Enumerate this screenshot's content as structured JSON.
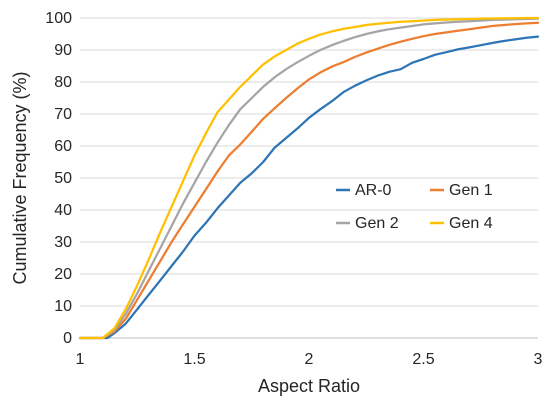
{
  "chart_data": {
    "type": "line",
    "title": "",
    "xlabel": "Aspect Ratio",
    "ylabel": "Cumulative Frequency (%)",
    "xlim": [
      1,
      3
    ],
    "ylim": [
      0,
      100
    ],
    "x_ticks": [
      1,
      1.5,
      2,
      2.5,
      3
    ],
    "x_tick_labels": [
      "1",
      "1.5",
      "2",
      "2.5",
      "3"
    ],
    "y_ticks": [
      0,
      10,
      20,
      30,
      40,
      50,
      60,
      70,
      80,
      90,
      100
    ],
    "y_tick_labels": [
      "0",
      "10",
      "20",
      "30",
      "40",
      "50",
      "60",
      "70",
      "80",
      "90",
      "100"
    ],
    "grid": "horizontal",
    "legend_placement": "center-right",
    "series": [
      {
        "name": "AR-0",
        "color": "#2e75b6",
        "x": [
          1.0,
          1.12,
          1.15,
          1.2,
          1.25,
          1.3,
          1.35,
          1.4,
          1.45,
          1.5,
          1.55,
          1.6,
          1.65,
          1.7,
          1.75,
          1.8,
          1.85,
          1.9,
          1.95,
          2.0,
          2.05,
          2.1,
          2.15,
          2.2,
          2.25,
          2.3,
          2.35,
          2.4,
          2.45,
          2.5,
          2.55,
          2.6,
          2.65,
          2.7,
          2.75,
          2.8,
          2.85,
          2.9,
          2.95,
          3.0
        ],
        "y": [
          0,
          0,
          1.5,
          4.5,
          9,
          13.5,
          18,
          22.5,
          27,
          32,
          36,
          40.5,
          44.5,
          48.5,
          51.5,
          55,
          59.5,
          62.5,
          65.5,
          68.8,
          71.5,
          74,
          76.8,
          78.8,
          80.5,
          82,
          83.2,
          84,
          86,
          87.2,
          88.5,
          89.3,
          90.2,
          90.8,
          91.5,
          92.2,
          92.8,
          93.3,
          93.8,
          94.2
        ]
      },
      {
        "name": "Gen 1",
        "color": "#ed7d31",
        "x": [
          1.0,
          1.1,
          1.15,
          1.2,
          1.25,
          1.3,
          1.35,
          1.4,
          1.45,
          1.5,
          1.55,
          1.6,
          1.65,
          1.7,
          1.75,
          1.8,
          1.85,
          1.9,
          1.95,
          2.0,
          2.05,
          2.1,
          2.15,
          2.2,
          2.25,
          2.3,
          2.35,
          2.4,
          2.45,
          2.5,
          2.55,
          2.6,
          2.65,
          2.7,
          2.75,
          2.8,
          2.85,
          2.9,
          2.95,
          3.0
        ],
        "y": [
          0,
          0,
          2,
          6,
          12,
          18,
          24,
          30,
          35.5,
          41,
          46.5,
          52,
          57,
          60.5,
          64.5,
          68.5,
          71.8,
          75,
          78,
          80.8,
          83,
          84.8,
          86.2,
          87.8,
          89.2,
          90.4,
          91.6,
          92.6,
          93.5,
          94.3,
          95,
          95.5,
          96,
          96.5,
          97,
          97.5,
          97.8,
          98.1,
          98.3,
          98.5
        ]
      },
      {
        "name": "Gen 2",
        "color": "#a5a5a5",
        "x": [
          1.0,
          1.1,
          1.15,
          1.2,
          1.25,
          1.3,
          1.35,
          1.4,
          1.45,
          1.5,
          1.55,
          1.6,
          1.65,
          1.7,
          1.75,
          1.8,
          1.85,
          1.9,
          1.95,
          2.0,
          2.05,
          2.1,
          2.15,
          2.2,
          2.25,
          2.3,
          2.35,
          2.4,
          2.45,
          2.5,
          2.55,
          2.6,
          2.65,
          2.7,
          2.75,
          2.8,
          2.85,
          2.9,
          2.95,
          3.0
        ],
        "y": [
          0,
          0,
          2.5,
          7.5,
          14,
          21,
          28,
          35,
          42,
          48.5,
          55,
          61,
          66.5,
          71.5,
          75,
          78.5,
          81.5,
          84,
          86.2,
          88.2,
          90,
          91.5,
          92.8,
          94,
          95,
          95.8,
          96.5,
          97,
          97.5,
          98,
          98.3,
          98.6,
          98.8,
          99,
          99.2,
          99.4,
          99.5,
          99.6,
          99.7,
          99.8
        ]
      },
      {
        "name": "Gen 4",
        "color": "#ffc000",
        "x": [
          1.0,
          1.1,
          1.15,
          1.2,
          1.25,
          1.3,
          1.35,
          1.4,
          1.45,
          1.5,
          1.55,
          1.6,
          1.65,
          1.7,
          1.75,
          1.8,
          1.85,
          1.9,
          1.95,
          2.0,
          2.05,
          2.1,
          2.15,
          2.2,
          2.25,
          2.3,
          2.35,
          2.4,
          2.45,
          2.5,
          2.55,
          2.6,
          2.65,
          2.7,
          2.75,
          2.8,
          2.85,
          2.9,
          2.95,
          3.0
        ],
        "y": [
          0,
          0,
          3,
          9,
          16.5,
          24.5,
          33,
          41,
          49,
          57,
          64,
          70.5,
          74.5,
          78.5,
          82,
          85.5,
          88,
          90,
          92,
          93.5,
          94.8,
          95.8,
          96.6,
          97.2,
          97.8,
          98.2,
          98.5,
          98.8,
          99,
          99.2,
          99.4,
          99.5,
          99.6,
          99.7,
          99.8,
          99.85,
          99.9,
          99.95,
          100,
          100
        ]
      }
    ]
  }
}
